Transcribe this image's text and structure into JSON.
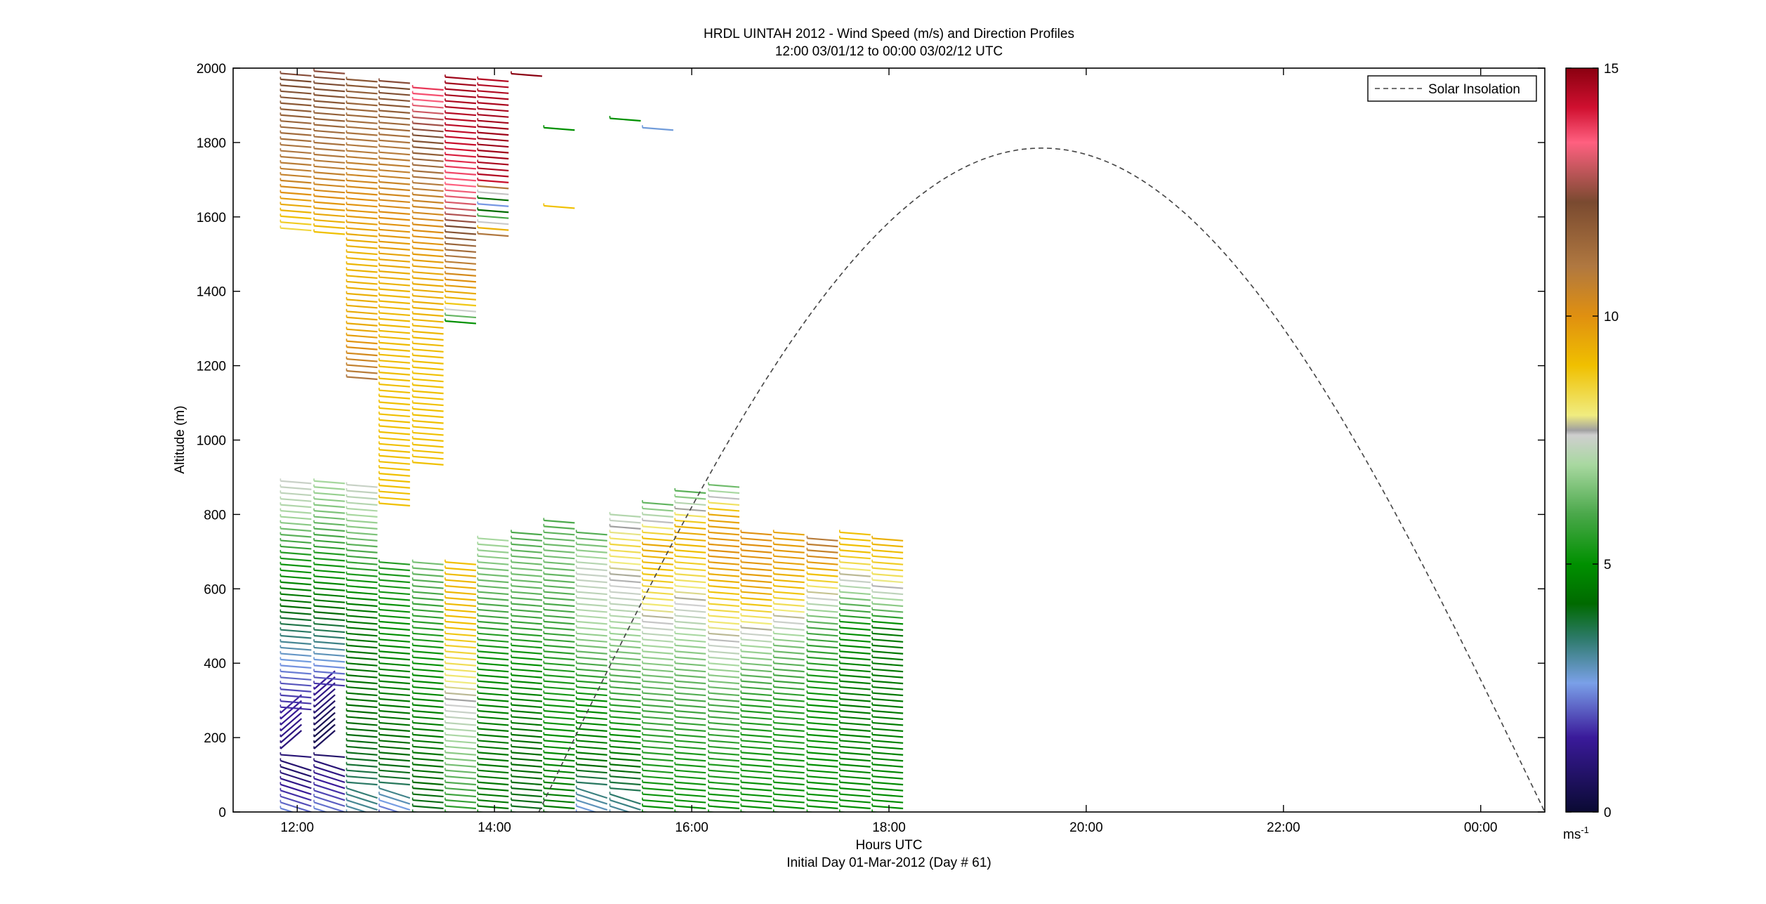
{
  "chart_data": {
    "type": "wind-barb-profile",
    "title": "HRDL UINTAH 2012 - Wind Speed (m/s) and Direction Profiles",
    "subtitle": "12:00 03/01/12 to 00:00 03/02/12  UTC",
    "xlabel": "Hours UTC",
    "xlabel2": "Initial Day 01-Mar-2012 (Day # 61)",
    "ylabel": "Altitude (m)",
    "xlim": [
      11.35,
      24.65
    ],
    "ylim": [
      0,
      2000
    ],
    "xticks": [
      {
        "value": 12,
        "label": "12:00"
      },
      {
        "value": 14,
        "label": "14:00"
      },
      {
        "value": 16,
        "label": "16:00"
      },
      {
        "value": 18,
        "label": "18:00"
      },
      {
        "value": 20,
        "label": "20:00"
      },
      {
        "value": 22,
        "label": "22:00"
      },
      {
        "value": 24,
        "label": "00:00"
      }
    ],
    "yticks": [
      0,
      200,
      400,
      600,
      800,
      1000,
      1200,
      1400,
      1600,
      1800,
      2000
    ],
    "colorbar": {
      "min": 0,
      "max": 15,
      "ticks": [
        0,
        5,
        10,
        15
      ],
      "unit": "ms",
      "unit_exp": "-1",
      "stops": [
        {
          "v": 0,
          "c": "#0a0a33"
        },
        {
          "v": 1.5,
          "c": "#3a1a9a"
        },
        {
          "v": 2.6,
          "c": "#7aa0e8"
        },
        {
          "v": 3.5,
          "c": "#2d7a6a"
        },
        {
          "v": 4.2,
          "c": "#006a00"
        },
        {
          "v": 5,
          "c": "#009000"
        },
        {
          "v": 6,
          "c": "#4aa84a"
        },
        {
          "v": 7,
          "c": "#a8d8a0"
        },
        {
          "v": 7.6,
          "c": "#cfcfcf"
        },
        {
          "v": 7.7,
          "c": "#a0a0a0"
        },
        {
          "v": 8,
          "c": "#f0ec80"
        },
        {
          "v": 9,
          "c": "#f0c000"
        },
        {
          "v": 10,
          "c": "#e09010"
        },
        {
          "v": 11,
          "c": "#b07840"
        },
        {
          "v": 12.3,
          "c": "#7a4a30"
        },
        {
          "v": 13.5,
          "c": "#ff6080"
        },
        {
          "v": 14.2,
          "c": "#d01030"
        },
        {
          "v": 15,
          "c": "#8a0010"
        }
      ]
    },
    "legend": {
      "position": "top-right",
      "entries": [
        "Solar Insolation"
      ]
    },
    "solar_insolation": {
      "style": "dashed",
      "color": "#444444",
      "start_hour": 14.45,
      "peak_hour": 19.55,
      "peak_altitude": 1785,
      "end_hour": 24.65,
      "end_altitude": 85
    },
    "profiles": [
      {
        "hour": 11.83,
        "bottom": 10,
        "top": 890,
        "speeds": [
          [
            0,
            2.5
          ],
          [
            120,
            0.8
          ],
          [
            350,
            2
          ],
          [
            440,
            3
          ],
          [
            560,
            4.3
          ],
          [
            700,
            5.5
          ],
          [
            800,
            7
          ],
          [
            890,
            7.5
          ]
        ]
      },
      {
        "hour": 11.83,
        "bottom": 1570,
        "top": 2000,
        "speeds": [
          [
            1570,
            8.5
          ],
          [
            1700,
            10.5
          ],
          [
            1850,
            11.5
          ],
          [
            2000,
            12.5
          ]
        ]
      },
      {
        "hour": 12.17,
        "bottom": 10,
        "top": 895,
        "speeds": [
          [
            0,
            2.5
          ],
          [
            200,
            0.3
          ],
          [
            330,
            1.5
          ],
          [
            430,
            3
          ],
          [
            550,
            4.3
          ],
          [
            700,
            5.5
          ],
          [
            800,
            6.5
          ],
          [
            895,
            7
          ]
        ]
      },
      {
        "hour": 12.17,
        "bottom": 1560,
        "top": 1995,
        "speeds": [
          [
            1560,
            9
          ],
          [
            1700,
            10.5
          ],
          [
            1850,
            11.5
          ],
          [
            1995,
            12.5
          ]
        ]
      },
      {
        "hour": 12.5,
        "bottom": 0,
        "top": 885,
        "speeds": [
          [
            0,
            3
          ],
          [
            150,
            4
          ],
          [
            300,
            4.3
          ],
          [
            550,
            4.5
          ],
          [
            700,
            6
          ],
          [
            800,
            7
          ],
          [
            885,
            7.5
          ]
        ]
      },
      {
        "hour": 12.5,
        "bottom": 1170,
        "top": 1985,
        "speeds": [
          [
            1170,
            11
          ],
          [
            1300,
            9.5
          ],
          [
            1500,
            9.2
          ],
          [
            1650,
            10
          ],
          [
            1800,
            11
          ],
          [
            1985,
            12
          ]
        ]
      },
      {
        "hour": 12.83,
        "bottom": 0,
        "top": 680,
        "speeds": [
          [
            0,
            2
          ],
          [
            100,
            4
          ],
          [
            300,
            4.5
          ],
          [
            500,
            5
          ],
          [
            680,
            5.5
          ]
        ]
      },
      {
        "hour": 12.83,
        "bottom": 830,
        "top": 1975,
        "speeds": [
          [
            830,
            9
          ],
          [
            1100,
            9
          ],
          [
            1400,
            9.2
          ],
          [
            1600,
            10
          ],
          [
            1800,
            11
          ],
          [
            1975,
            12.5
          ]
        ]
      },
      {
        "hour": 13.17,
        "bottom": 0,
        "top": 680,
        "speeds": [
          [
            0,
            4
          ],
          [
            200,
            4.5
          ],
          [
            400,
            5
          ],
          [
            600,
            6
          ],
          [
            680,
            6.5
          ]
        ]
      },
      {
        "hour": 13.17,
        "bottom": 940,
        "top": 1960,
        "speeds": [
          [
            940,
            9
          ],
          [
            1200,
            9
          ],
          [
            1450,
            9.5
          ],
          [
            1650,
            10.5
          ],
          [
            1800,
            12
          ],
          [
            1960,
            14
          ]
        ]
      },
      {
        "hour": 13.5,
        "bottom": 0,
        "top": 680,
        "speeds": [
          [
            0,
            5.5
          ],
          [
            200,
            7
          ],
          [
            350,
            8
          ],
          [
            500,
            9
          ],
          [
            600,
            9.2
          ],
          [
            680,
            9
          ]
        ]
      },
      {
        "hour": 13.5,
        "bottom": 1320,
        "top": 1990,
        "speeds": [
          [
            1320,
            5
          ],
          [
            1370,
            9
          ],
          [
            1620,
            13
          ],
          [
            1800,
            14.3
          ],
          [
            1990,
            14.8
          ]
        ]
      },
      {
        "hour": 13.83,
        "bottom": 0,
        "top": 740,
        "speeds": [
          [
            0,
            4.5
          ],
          [
            200,
            4.5
          ],
          [
            400,
            5
          ],
          [
            550,
            6
          ],
          [
            650,
            6.5
          ],
          [
            740,
            7
          ]
        ]
      },
      {
        "hour": 13.83,
        "bottom": 1555,
        "top": 1980,
        "speeds": [
          [
            1555,
            11
          ],
          [
            1640,
            2
          ],
          [
            1700,
            14.5
          ],
          [
            1800,
            14.8
          ],
          [
            1980,
            14.5
          ]
        ]
      },
      {
        "hour": 14.17,
        "bottom": 0,
        "top": 755,
        "speeds": [
          [
            0,
            4
          ],
          [
            200,
            4.3
          ],
          [
            400,
            5
          ],
          [
            550,
            6
          ],
          [
            650,
            6.5
          ],
          [
            755,
            6
          ]
        ]
      },
      {
        "hour": 14.17,
        "bottom": 1985,
        "top": 1985,
        "speeds": [
          [
            1985,
            15
          ]
        ]
      },
      {
        "hour": 14.5,
        "bottom": 0,
        "top": 790,
        "speeds": [
          [
            0,
            4.5
          ],
          [
            200,
            5
          ],
          [
            400,
            5.5
          ],
          [
            550,
            6
          ],
          [
            700,
            6.5
          ],
          [
            790,
            6
          ]
        ]
      },
      {
        "hour": 14.5,
        "bottom": 1630,
        "top": 1630,
        "speeds": [
          [
            1630,
            9
          ]
        ]
      },
      {
        "hour": 14.5,
        "bottom": 1840,
        "top": 1840,
        "speeds": [
          [
            1840,
            5
          ]
        ]
      },
      {
        "hour": 14.83,
        "bottom": 0,
        "top": 760,
        "speeds": [
          [
            0,
            2.5
          ],
          [
            150,
            4.5
          ],
          [
            300,
            5
          ],
          [
            500,
            7
          ],
          [
            650,
            7.5
          ],
          [
            760,
            6
          ]
        ]
      },
      {
        "hour": 15.17,
        "bottom": 0,
        "top": 810,
        "speeds": [
          [
            0,
            3
          ],
          [
            150,
            4.5
          ],
          [
            350,
            6
          ],
          [
            500,
            7
          ],
          [
            650,
            7.8
          ],
          [
            720,
            8.5
          ],
          [
            810,
            7
          ]
        ]
      },
      {
        "hour": 15.17,
        "bottom": 1865,
        "top": 1865,
        "speeds": [
          [
            1865,
            5
          ]
        ]
      },
      {
        "hour": 15.5,
        "bottom": 0,
        "top": 840,
        "speeds": [
          [
            0,
            5
          ],
          [
            300,
            6
          ],
          [
            450,
            7
          ],
          [
            600,
            8.5
          ],
          [
            720,
            9.5
          ],
          [
            840,
            6
          ]
        ]
      },
      {
        "hour": 15.5,
        "bottom": 1840,
        "top": 1840,
        "speeds": [
          [
            1840,
            2.7
          ]
        ]
      },
      {
        "hour": 15.83,
        "bottom": 0,
        "top": 870,
        "speeds": [
          [
            0,
            5
          ],
          [
            200,
            5.5
          ],
          [
            400,
            6.5
          ],
          [
            550,
            7.5
          ],
          [
            650,
            8.5
          ],
          [
            760,
            9.5
          ],
          [
            870,
            6
          ]
        ]
      },
      {
        "hour": 16.17,
        "bottom": 0,
        "top": 890,
        "speeds": [
          [
            0,
            5
          ],
          [
            300,
            6
          ],
          [
            450,
            7.5
          ],
          [
            600,
            9
          ],
          [
            700,
            10
          ],
          [
            800,
            9.5
          ],
          [
            890,
            6
          ]
        ]
      },
      {
        "hour": 16.5,
        "bottom": 0,
        "top": 755,
        "speeds": [
          [
            0,
            5
          ],
          [
            300,
            5.5
          ],
          [
            450,
            7
          ],
          [
            600,
            9.5
          ],
          [
            700,
            10
          ],
          [
            755,
            10
          ]
        ]
      },
      {
        "hour": 16.83,
        "bottom": 0,
        "top": 760,
        "speeds": [
          [
            0,
            5
          ],
          [
            300,
            5.5
          ],
          [
            450,
            6.5
          ],
          [
            600,
            9
          ],
          [
            700,
            9.8
          ],
          [
            760,
            9.5
          ]
        ]
      },
      {
        "hour": 17.17,
        "bottom": 0,
        "top": 750,
        "speeds": [
          [
            0,
            5
          ],
          [
            300,
            5
          ],
          [
            500,
            6
          ],
          [
            600,
            8
          ],
          [
            700,
            10.5
          ],
          [
            750,
            11
          ]
        ]
      },
      {
        "hour": 17.5,
        "bottom": 0,
        "top": 760,
        "speeds": [
          [
            0,
            5
          ],
          [
            300,
            4.5
          ],
          [
            500,
            5
          ],
          [
            600,
            7
          ],
          [
            700,
            9
          ],
          [
            760,
            9
          ]
        ]
      },
      {
        "hour": 17.83,
        "bottom": 0,
        "top": 750,
        "speeds": [
          [
            0,
            5
          ],
          [
            300,
            4.5
          ],
          [
            500,
            4.5
          ],
          [
            550,
            6.5
          ],
          [
            650,
            8.5
          ],
          [
            750,
            9.5
          ]
        ]
      }
    ]
  }
}
